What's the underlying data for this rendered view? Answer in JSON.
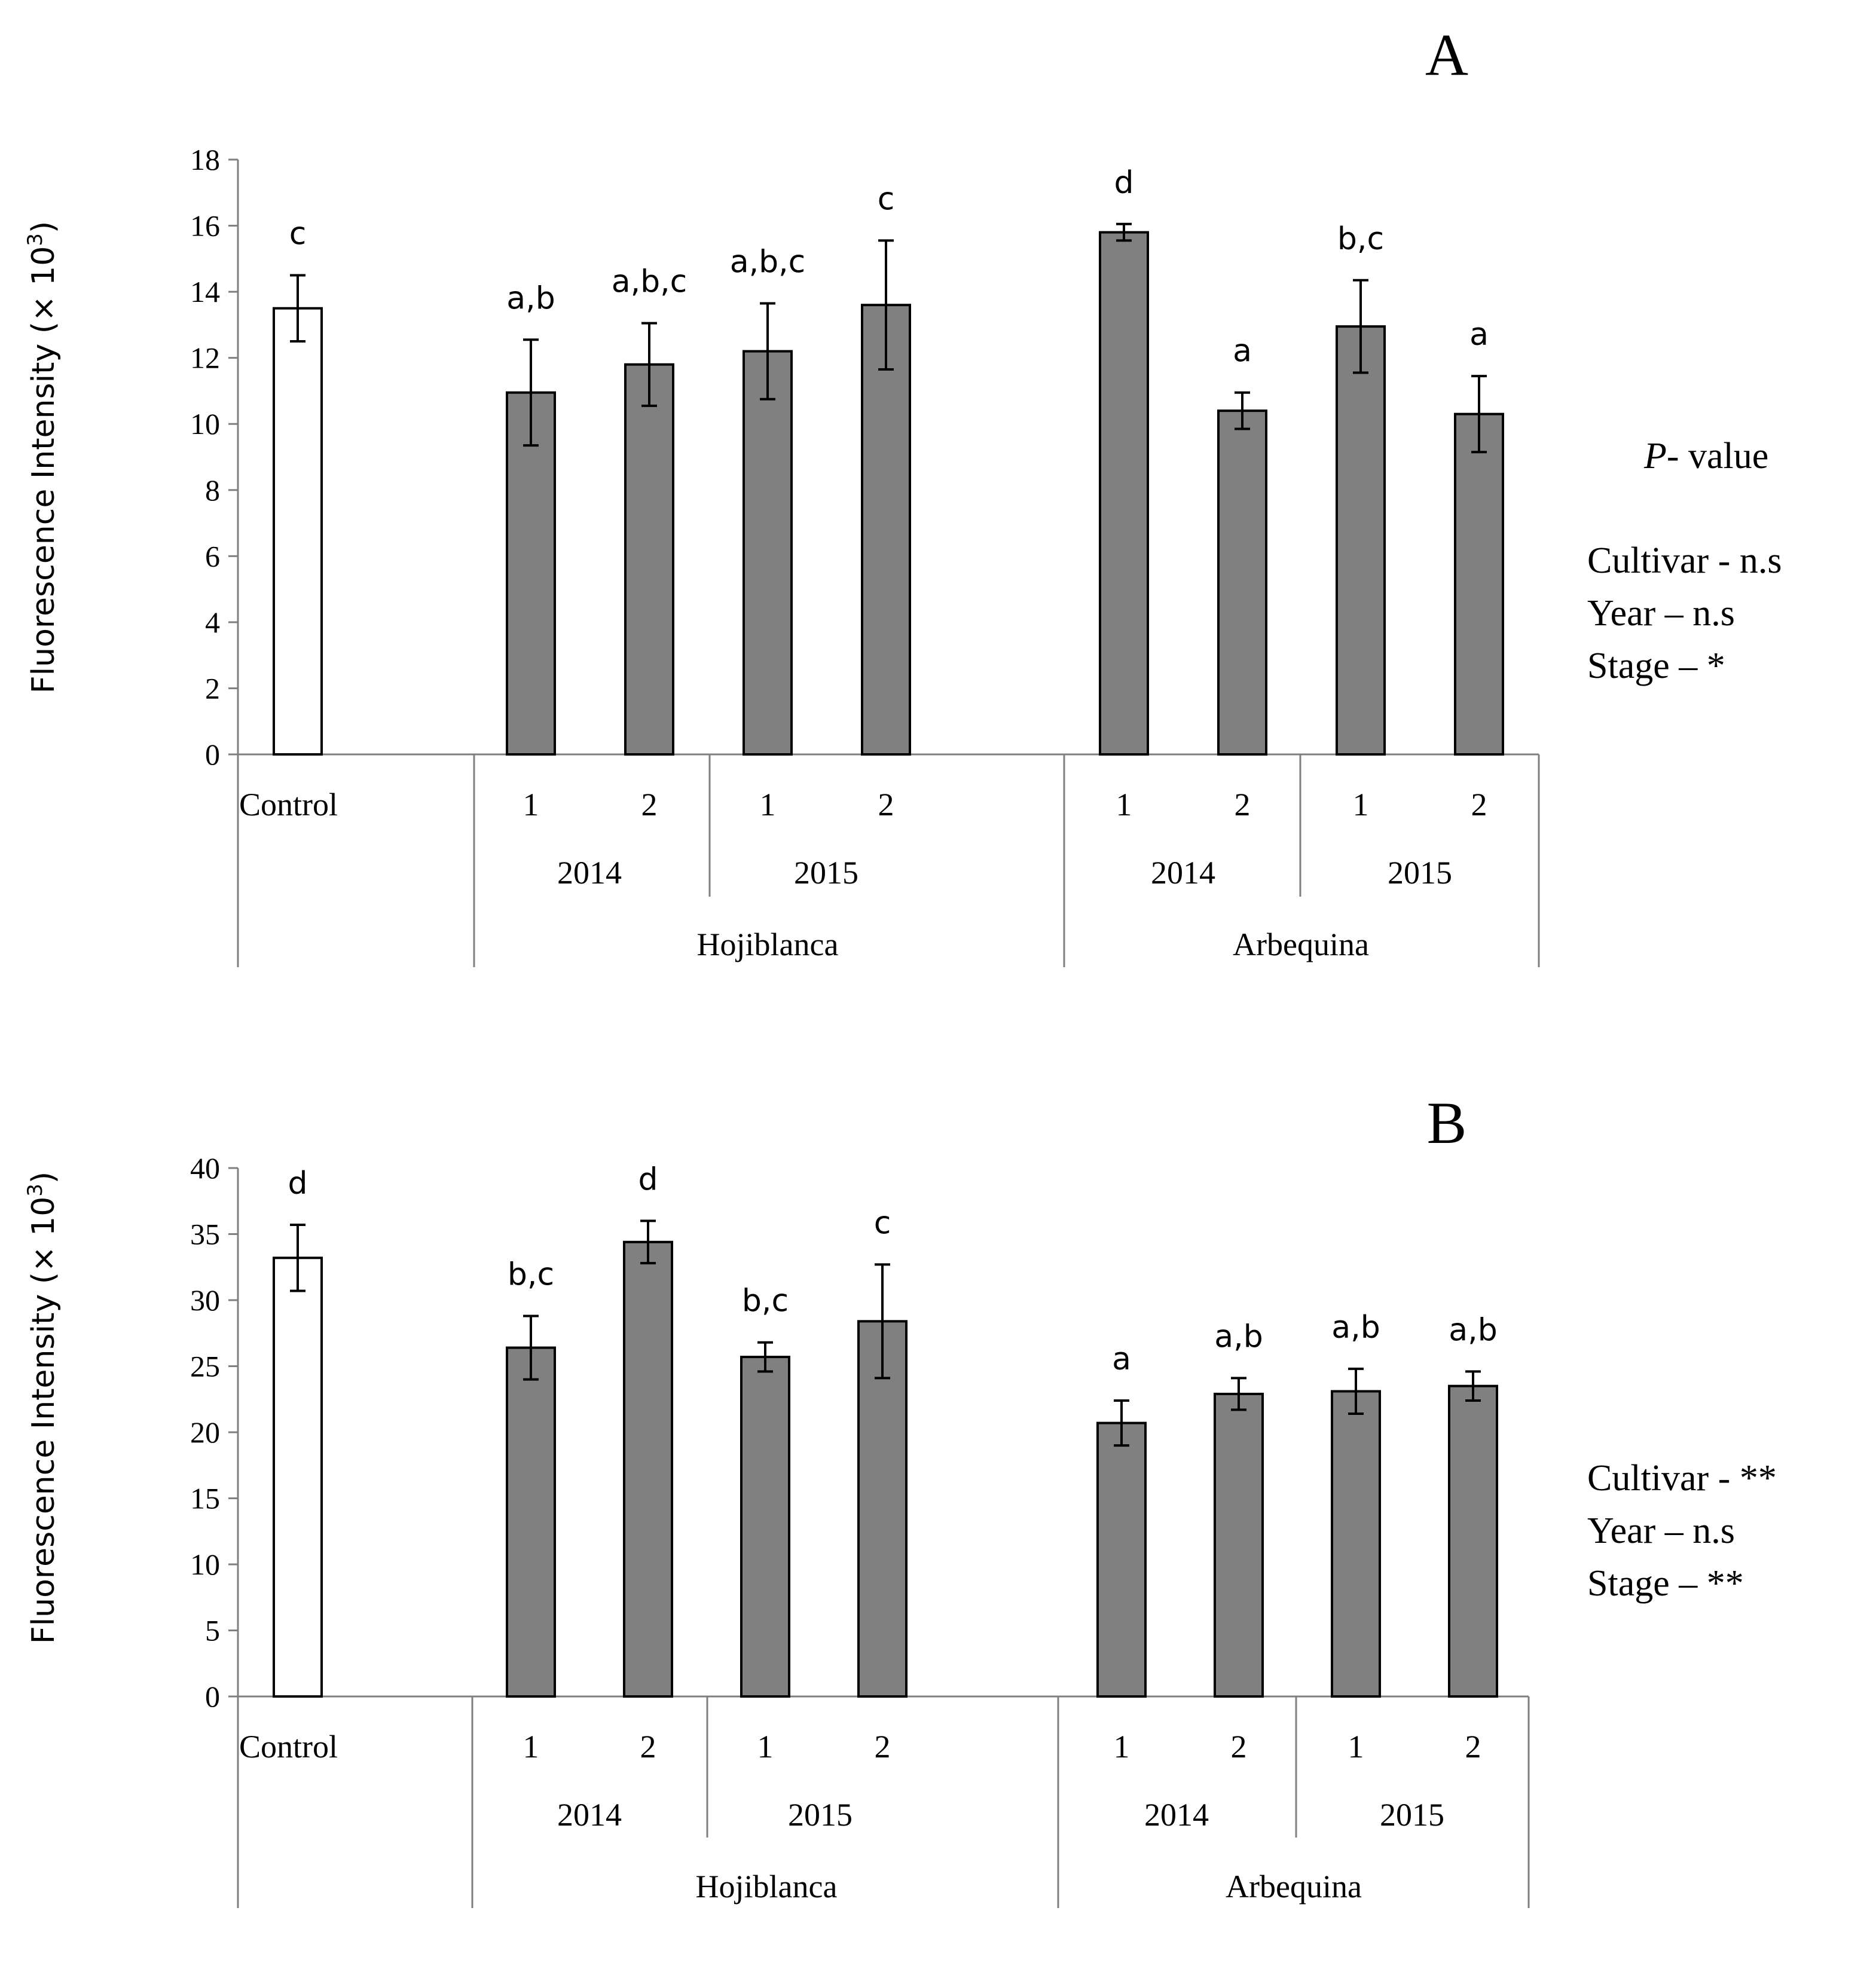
{
  "chart_data": [
    {
      "type": "bar",
      "panel_label": "A",
      "ylabel_main": "Fluorescence Intensity (× 10",
      "ylabel_exp": "3",
      "ylabel_close": ")",
      "ylim": [
        0,
        18
      ],
      "ytick_step": 2,
      "bars": [
        {
          "group": "Control",
          "stage": "Control",
          "value": 13.5,
          "error": 1.0,
          "letter": "c",
          "fill": "#ffffff"
        },
        {
          "group": "Hojiblanca-2014",
          "stage": "1",
          "value": 10.95,
          "error": 1.6,
          "letter": "a,b",
          "fill": "#808080"
        },
        {
          "group": "Hojiblanca-2014",
          "stage": "2",
          "value": 11.8,
          "error": 1.25,
          "letter": "a,b,c",
          "fill": "#808080"
        },
        {
          "group": "Hojiblanca-2015",
          "stage": "1",
          "value": 12.2,
          "error": 1.45,
          "letter": "a,b,c",
          "fill": "#808080"
        },
        {
          "group": "Hojiblanca-2015",
          "stage": "2",
          "value": 13.6,
          "error": 1.95,
          "letter": "c",
          "fill": "#808080"
        },
        {
          "group": "Arbequina-2014",
          "stage": "1",
          "value": 15.8,
          "error": 0.25,
          "letter": "d",
          "fill": "#808080"
        },
        {
          "group": "Arbequina-2014",
          "stage": "2",
          "value": 10.4,
          "error": 0.55,
          "letter": "a",
          "fill": "#808080"
        },
        {
          "group": "Arbequina-2015",
          "stage": "1",
          "value": 12.95,
          "error": 1.4,
          "letter": "b,c",
          "fill": "#808080"
        },
        {
          "group": "Arbequina-2015",
          "stage": "2",
          "value": 10.3,
          "error": 1.15,
          "letter": "a",
          "fill": "#808080"
        }
      ],
      "year_labels": [
        "2014",
        "2015",
        "2014",
        "2015"
      ],
      "cultivar_labels": [
        "Hojiblanca",
        "Arbequina"
      ],
      "pvalue_title_italic": "P",
      "pvalue_title_rest": "- value",
      "pvalues": [
        "Cultivar  - n.s",
        "Year – n.s",
        "Stage – *"
      ]
    },
    {
      "type": "bar",
      "panel_label": "B",
      "ylabel_main": "Fluorescence Intensity  (× 10",
      "ylabel_exp": "3",
      "ylabel_close": ")",
      "ylim": [
        0,
        40
      ],
      "ytick_step": 5,
      "bars": [
        {
          "group": "Control",
          "stage": "Control",
          "value": 33.2,
          "error": 2.5,
          "letter": "d",
          "fill": "#ffffff"
        },
        {
          "group": "Hojiblanca-2014",
          "stage": "1",
          "value": 26.4,
          "error": 2.4,
          "letter": "b,c",
          "fill": "#808080"
        },
        {
          "group": "Hojiblanca-2014",
          "stage": "2",
          "value": 34.4,
          "error": 1.6,
          "letter": "d",
          "fill": "#808080"
        },
        {
          "group": "Hojiblanca-2015",
          "stage": "1",
          "value": 25.7,
          "error": 1.1,
          "letter": "b,c",
          "fill": "#808080"
        },
        {
          "group": "Hojiblanca-2015",
          "stage": "2",
          "value": 28.4,
          "error": 4.3,
          "letter": "c",
          "fill": "#808080"
        },
        {
          "group": "Arbequina-2014",
          "stage": "1",
          "value": 20.7,
          "error": 1.7,
          "letter": "a",
          "fill": "#808080"
        },
        {
          "group": "Arbequina-2014",
          "stage": "2",
          "value": 22.9,
          "error": 1.2,
          "letter": "a,b",
          "fill": "#808080"
        },
        {
          "group": "Arbequina-2015",
          "stage": "1",
          "value": 23.1,
          "error": 1.7,
          "letter": "a,b",
          "fill": "#808080"
        },
        {
          "group": "Arbequina-2015",
          "stage": "2",
          "value": 23.5,
          "error": 1.1,
          "letter": "a,b",
          "fill": "#808080"
        }
      ],
      "year_labels": [
        "2014",
        "2015",
        "2014",
        "2015"
      ],
      "cultivar_labels": [
        "Hojiblanca",
        "Arbequina"
      ],
      "pvalues": [
        "Cultivar  - **",
        "Year – n.s",
        "Stage – **"
      ]
    }
  ]
}
